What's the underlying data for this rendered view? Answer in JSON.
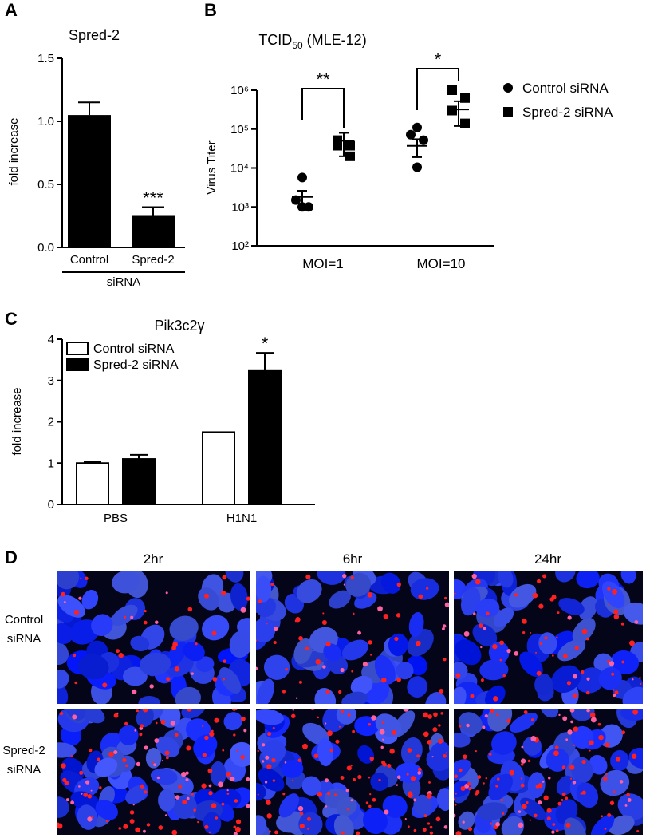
{
  "chart_data": [
    {
      "type": "bar",
      "panel": "A",
      "title": "Spred-2",
      "ylabel": "fold increase",
      "group_label": "siRNA",
      "categories": [
        "Control",
        "Spred-2"
      ],
      "values": [
        1.05,
        0.25
      ],
      "errors": [
        0.1,
        0.07
      ],
      "color": "#000000",
      "annotations": [
        null,
        "***"
      ],
      "ylim": [
        0,
        1.5
      ],
      "yticks": [
        {
          "value": 0,
          "label": "0.0"
        },
        0.5,
        {
          "value": 1,
          "label": "1.0"
        },
        1.5
      ]
    },
    {
      "type": "scatter",
      "panel": "B",
      "title": [
        "TCID",
        "50",
        "(MLE-12)"
      ],
      "ylabel": "Virus Titer",
      "categories": [
        "MOI=1",
        "MOI=10"
      ],
      "log_y": true,
      "annotations": [
        "**",
        "*"
      ],
      "series": [
        {
          "name": "Control siRNA",
          "marker": "circle",
          "color": "#000000",
          "values": [
            [
              5700,
              1500,
              1000,
              1000
            ],
            [
              110000,
              72000,
              52000,
              10500
            ]
          ],
          "means": [
            1800,
            37000
          ],
          "sems": [
            800,
            18000
          ]
        },
        {
          "name": "Spred-2 siRNA",
          "marker": "square",
          "color": "#000000",
          "values": [
            [
              52000,
              37500,
              37500,
              20000
            ],
            [
              1000000,
              630000,
              300000,
              140000
            ]
          ],
          "means": [
            50000,
            320000
          ],
          "sems": [
            30000,
            200000
          ]
        }
      ],
      "ylim": [
        100,
        1000000
      ],
      "yticks": [
        {
          "value": 100,
          "label": "10²"
        },
        {
          "value": 1000,
          "label": "10³"
        },
        {
          "value": 10000,
          "label": "10⁴"
        },
        {
          "value": 100000,
          "label": "10⁵"
        },
        {
          "value": 1000000,
          "label": "10⁶"
        }
      ]
    },
    {
      "type": "grouped_bar",
      "panel": "C",
      "title": "Pik3c2γ",
      "ylabel": "fold increase",
      "categories": [
        "PBS",
        "H1N1"
      ],
      "annotations": [
        null,
        "*"
      ],
      "series": [
        {
          "name": "Control siRNA",
          "color": "#ffffff",
          "values": [
            1.0,
            1.75
          ],
          "errors": [
            0.03,
            0
          ]
        },
        {
          "name": "Spred-2 siRNA",
          "color": "#000000",
          "values": [
            1.1,
            3.25
          ],
          "errors": [
            0.1,
            0.42
          ]
        }
      ],
      "ylim": [
        0,
        4
      ],
      "yticks": [
        0,
        1,
        2,
        3,
        4
      ]
    }
  ],
  "panel_d": {
    "label": "D",
    "columns": [
      "2hr",
      "6hr",
      "24hr"
    ],
    "rows": [
      [
        "Control",
        "siRNA"
      ],
      [
        "Spred-2",
        "siRNA"
      ]
    ]
  }
}
